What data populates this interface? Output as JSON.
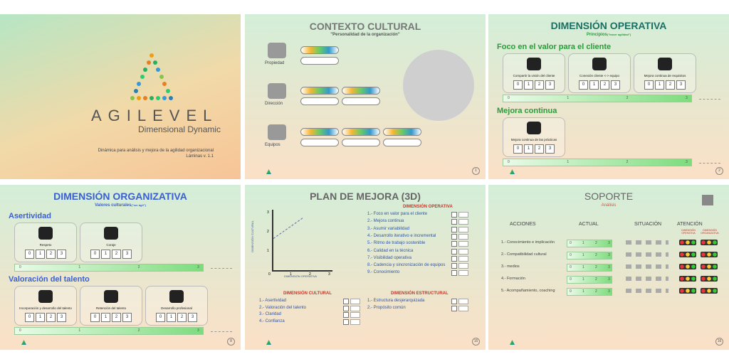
{
  "slides": [
    {
      "title": "AGILEVEL",
      "subtitle": "Dimensional Dynamic",
      "description": "Dinámica para análisis y mejora de la agilidad organizacional",
      "version": "Láminas v.  1.1"
    },
    {
      "title": "CONTEXTO CULTURAL",
      "subtitle": "\"Personalidad de la organización\"",
      "rows": [
        "Propiedad",
        "Dirección",
        "Equipos"
      ],
      "page": "1"
    },
    {
      "title": "DIMENSIÓN OPERATIVA",
      "subtitle": "Principios",
      "note": "(\"hacer agilidad\")",
      "sections": [
        {
          "heading": "Foco en el valor para el cliente",
          "items": [
            "Compartir la visión del cliente",
            "Conexión cliente <-> equipo",
            "Mejora continua de requisitos"
          ]
        },
        {
          "heading": "Mejora continua",
          "items": [
            "Mejora continua de las prácticas"
          ]
        }
      ],
      "scale": [
        "0",
        "1",
        "2",
        "3"
      ],
      "page": "2"
    },
    {
      "title": "DIMENSIÓN ORGANIZATIVA",
      "subtitle": "Valores culturales",
      "note": "(\"ser ágil\")",
      "sections": [
        {
          "heading": "Asertividad",
          "items": [
            "Respeto",
            "Coraje"
          ]
        },
        {
          "heading": "Valoración del talento",
          "items": [
            "Incorporación y desarrollo del talento",
            "Retención del talento",
            "Desarrollo profesional"
          ]
        }
      ],
      "scale": [
        "0",
        "1",
        "2",
        "3"
      ],
      "page": "8"
    },
    {
      "title": "PLAN DE MEJORA  (3D)",
      "axis_y": "DIMENSIÓN CULTURAL",
      "axis_x": "DIMENSIÓN OPERATIVA",
      "ticks": [
        "0",
        "1",
        "2",
        "3"
      ],
      "groups": [
        {
          "heading": "DIMENSIÓN OPERATIVA",
          "items": [
            "1.- Foco en valor para el cliente",
            "2.- Mejora continua",
            "3.- Asumir variabilidad",
            "4.- Desarrollo iterativo e incremental",
            "5.- Ritmo de trabajo sostenible",
            "6.- Calidad en la técnica",
            "7.- Visibilidad operativa",
            "8.- Cadencia y sincronización de equipos",
            "9.- Conocimiento"
          ]
        },
        {
          "heading": "DIMENSIÓN CULTURAL",
          "items": [
            "1.- Asertividad",
            "2.- Valoración del talento",
            "3.- Claridad",
            "4.- Confianza"
          ]
        },
        {
          "heading": "DIMENSIÓN ESTRUCTURAL",
          "items": [
            "1.- Estructura desjerarquizada",
            "2.- Propósito común"
          ]
        }
      ],
      "page": "15"
    },
    {
      "title": "SOPORTE",
      "subtitle": "Análisis",
      "columns": [
        "ACCIONES",
        "ACTUAL",
        "SITUACIÓN",
        "ATENCIÓN"
      ],
      "attention": [
        "DIMENSIÓN OPERATIVA",
        "DIMENSIÓN ORGANIZATIVA"
      ],
      "actions": [
        "1.- Conocimiento e implicación",
        "2.- Compatibilidad cultural",
        "3.- medios",
        "4.- Formación",
        "5.- Acompañamiento, coaching"
      ],
      "scale": [
        "0",
        "1",
        "2",
        "3"
      ],
      "page": "16"
    }
  ]
}
